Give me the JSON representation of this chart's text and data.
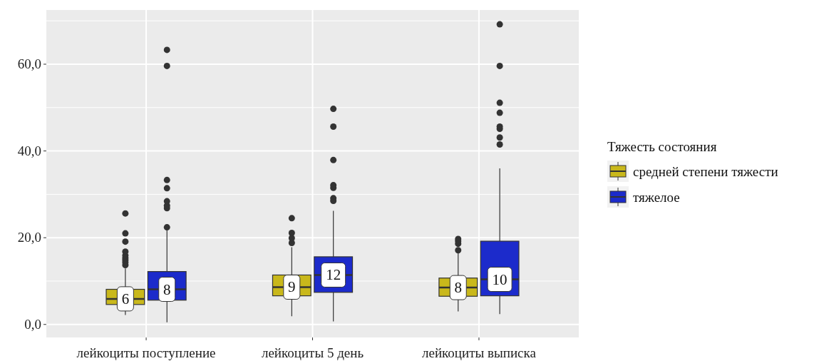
{
  "chart_data": {
    "type": "box",
    "categories": [
      "лейкоциты поступление",
      "лейкоциты 5 день",
      "лейкоциты выписка"
    ],
    "legend_title": "Тяжесть состояния",
    "legend": "right",
    "grid": true,
    "ylim": [
      -3,
      72.5
    ],
    "yticks": [
      {
        "value": 0,
        "label": "0,0"
      },
      {
        "value": 10,
        "label": null
      },
      {
        "value": 20,
        "label": "20,0"
      },
      {
        "value": 30,
        "label": null
      },
      {
        "value": 40,
        "label": "40,0"
      },
      {
        "value": 50,
        "label": null
      },
      {
        "value": 60,
        "label": "60,0"
      },
      {
        "value": 70,
        "label": null
      }
    ],
    "series": [
      {
        "name": "средней степени тяжести",
        "color": "#c9b81b",
        "value_labels": [
          "6",
          "9",
          "8"
        ],
        "boxes": [
          {
            "low": 2.2,
            "q1": 4.6,
            "median": 5.9,
            "q3": 8.1,
            "high": 12.9,
            "outliers": [
              13.7,
              14.3,
              14.8,
              15.3,
              15.9,
              16.8,
              19.1,
              21.0,
              25.6
            ]
          },
          {
            "low": 1.9,
            "q1": 6.6,
            "median": 8.6,
            "q3": 11.4,
            "high": 17.8,
            "outliers": [
              18.8,
              19.9,
              21.1,
              24.5
            ]
          },
          {
            "low": 3.0,
            "q1": 6.5,
            "median": 8.5,
            "q3": 10.7,
            "high": 16.4,
            "outliers": [
              17.1,
              18.6,
              19.2,
              19.7
            ]
          }
        ]
      },
      {
        "name": "тяжелое",
        "color": "#1c2bcb",
        "value_labels": [
          "8",
          "12",
          "10"
        ],
        "boxes": [
          {
            "low": 0.5,
            "q1": 5.6,
            "median": 8.1,
            "q3": 12.2,
            "high": 21.8,
            "outliers": [
              22.4,
              26.8,
              27.4,
              28.4,
              31.4,
              33.3,
              59.6,
              63.3
            ]
          },
          {
            "low": 0.7,
            "q1": 7.4,
            "median": 11.4,
            "q3": 15.6,
            "high": 26.2,
            "outliers": [
              28.5,
              29.1,
              31.5,
              32.1,
              37.9,
              45.6,
              49.7
            ]
          },
          {
            "low": 2.4,
            "q1": 6.6,
            "median": 10.4,
            "q3": 19.2,
            "high": 36.0,
            "outliers": [
              41.5,
              43.1,
              45.1,
              45.6,
              48.8,
              51.1,
              59.6,
              69.2
            ]
          }
        ]
      }
    ]
  }
}
